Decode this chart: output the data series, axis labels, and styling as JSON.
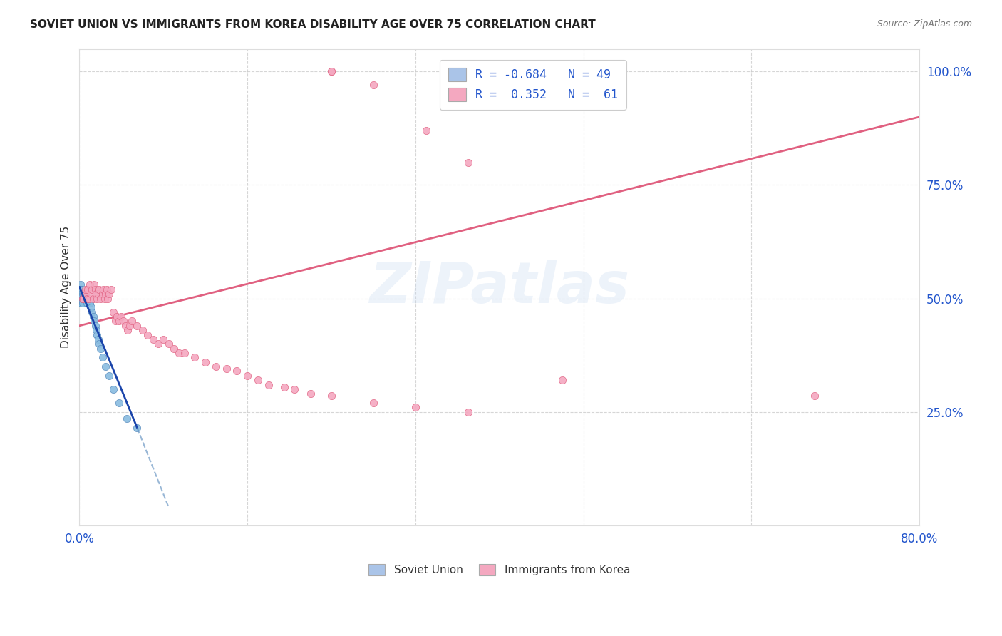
{
  "title": "SOVIET UNION VS IMMIGRANTS FROM KOREA DISABILITY AGE OVER 75 CORRELATION CHART",
  "source": "Source: ZipAtlas.com",
  "ylabel": "Disability Age Over 75",
  "background_color": "#ffffff",
  "watermark_text": "ZIPatlas",
  "legend": {
    "soviet_R": "-0.684",
    "soviet_N": "49",
    "korea_R": "0.352",
    "korea_N": "61",
    "soviet_color": "#aac4e8",
    "korea_color": "#f4a8c0"
  },
  "soviet_scatter": {
    "x": [
      0.001,
      0.001,
      0.001,
      0.001,
      0.001,
      0.001,
      0.001,
      0.001,
      0.002,
      0.002,
      0.002,
      0.002,
      0.002,
      0.002,
      0.002,
      0.003,
      0.003,
      0.003,
      0.003,
      0.003,
      0.004,
      0.004,
      0.004,
      0.005,
      0.005,
      0.006,
      0.006,
      0.007,
      0.007,
      0.008,
      0.009,
      0.01,
      0.011,
      0.012,
      0.013,
      0.014,
      0.015,
      0.016,
      0.017,
      0.018,
      0.019,
      0.02,
      0.022,
      0.025,
      0.028,
      0.032,
      0.038,
      0.045,
      0.055
    ],
    "y": [
      0.52,
      0.51,
      0.5,
      0.53,
      0.49,
      0.52,
      0.51,
      0.5,
      0.52,
      0.51,
      0.5,
      0.5,
      0.49,
      0.52,
      0.51,
      0.51,
      0.5,
      0.5,
      0.49,
      0.5,
      0.5,
      0.51,
      0.5,
      0.51,
      0.5,
      0.51,
      0.5,
      0.5,
      0.49,
      0.5,
      0.49,
      0.49,
      0.48,
      0.47,
      0.46,
      0.45,
      0.44,
      0.43,
      0.42,
      0.41,
      0.4,
      0.39,
      0.37,
      0.35,
      0.33,
      0.3,
      0.27,
      0.235,
      0.215
    ],
    "color": "#88bce0",
    "edgecolor": "#5588bb",
    "size": 55
  },
  "korea_scatter": {
    "x": [
      0.003,
      0.004,
      0.005,
      0.006,
      0.007,
      0.008,
      0.009,
      0.01,
      0.011,
      0.012,
      0.013,
      0.014,
      0.015,
      0.016,
      0.017,
      0.018,
      0.019,
      0.02,
      0.022,
      0.023,
      0.024,
      0.025,
      0.026,
      0.027,
      0.028,
      0.03,
      0.032,
      0.034,
      0.036,
      0.038,
      0.04,
      0.042,
      0.044,
      0.046,
      0.048,
      0.05,
      0.055,
      0.06,
      0.065,
      0.07,
      0.075,
      0.08,
      0.085,
      0.09,
      0.095,
      0.1,
      0.11,
      0.12,
      0.13,
      0.14,
      0.15,
      0.16,
      0.17,
      0.18,
      0.195,
      0.205,
      0.22,
      0.24,
      0.28,
      0.32,
      0.37
    ],
    "y": [
      0.5,
      0.5,
      0.51,
      0.52,
      0.5,
      0.52,
      0.5,
      0.53,
      0.51,
      0.52,
      0.5,
      0.53,
      0.52,
      0.51,
      0.5,
      0.51,
      0.52,
      0.5,
      0.51,
      0.52,
      0.5,
      0.51,
      0.52,
      0.5,
      0.51,
      0.52,
      0.47,
      0.45,
      0.46,
      0.45,
      0.46,
      0.45,
      0.44,
      0.43,
      0.44,
      0.45,
      0.44,
      0.43,
      0.42,
      0.41,
      0.4,
      0.41,
      0.4,
      0.39,
      0.38,
      0.38,
      0.37,
      0.36,
      0.35,
      0.345,
      0.34,
      0.33,
      0.32,
      0.31,
      0.305,
      0.3,
      0.29,
      0.285,
      0.27,
      0.26,
      0.25
    ],
    "color": "#f4a8c0",
    "edgecolor": "#e06080",
    "size": 55
  },
  "korea_outliers": {
    "x": [
      0.24,
      0.24,
      0.28,
      0.33,
      0.37,
      0.46,
      0.7
    ],
    "y": [
      1.0,
      1.0,
      0.97,
      0.87,
      0.8,
      0.32,
      0.285
    ],
    "color": "#f4a8c0",
    "edgecolor": "#e06080",
    "size": 55
  },
  "soviet_line_solid": {
    "x": [
      0.0,
      0.055
    ],
    "y": [
      0.525,
      0.215
    ],
    "color": "#1a44aa",
    "linewidth": 2.0
  },
  "soviet_line_dash": {
    "x": [
      0.055,
      0.085
    ],
    "y": [
      0.215,
      0.04
    ],
    "color": "#5588bb",
    "linewidth": 1.5
  },
  "korea_line": {
    "x": [
      0.0,
      0.8
    ],
    "y": [
      0.44,
      0.9
    ],
    "color": "#e06080",
    "linewidth": 2.0
  },
  "xlim": [
    0.0,
    0.8
  ],
  "ylim": [
    0.0,
    1.05
  ],
  "yticks": [
    0.0,
    0.25,
    0.5,
    0.75,
    1.0
  ],
  "ytick_labels": [
    "",
    "25.0%",
    "50.0%",
    "75.0%",
    "100.0%"
  ],
  "xticks": [
    0.0,
    0.16,
    0.32,
    0.48,
    0.64,
    0.8
  ],
  "xtick_labels": [
    "0.0%",
    "",
    "",
    "",
    "",
    "80.0%"
  ]
}
